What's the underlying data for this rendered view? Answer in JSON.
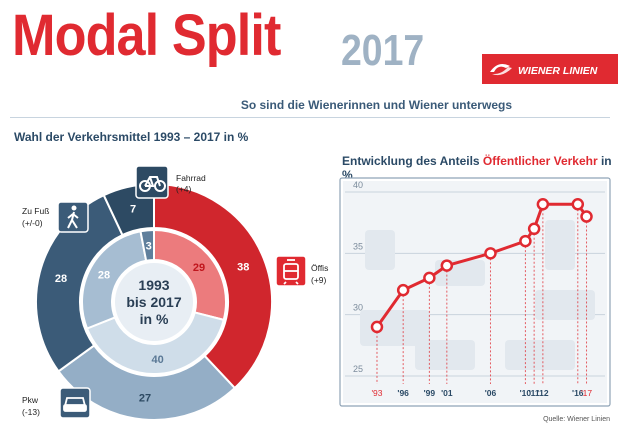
{
  "header": {
    "title": "Modal Split",
    "year": "2017",
    "subtitle": "So sind die Wienerinnen und Wiener unterwegs",
    "logo_text": "WIENER LINIEN"
  },
  "left_panel": {
    "heading": "Wahl der Verkehrsmittel 1993 – 2017 in %",
    "center_label": [
      "1993",
      "bis 2017",
      "in %"
    ],
    "modes": [
      {
        "name": "Fahrrad",
        "change": "(+4)",
        "v1993": "3",
        "v2017": "7",
        "icon": "bicycle-icon"
      },
      {
        "name": "Öffis",
        "change": "(+9)",
        "v1993": "29",
        "v2017": "38",
        "icon": "tram-icon"
      },
      {
        "name": "Pkw",
        "change": "(-13)",
        "v1993": "40",
        "v2017": "27",
        "icon": "car-icon"
      },
      {
        "name": "Zu Fuß",
        "change": "(+/-0)",
        "v1993": "28",
        "v2017": "28",
        "icon": "pedestrian-icon"
      }
    ]
  },
  "right_panel": {
    "heading_prefix": "Entwicklung des Anteils ",
    "heading_highlight": "Öffentlicher Verkehr",
    "heading_suffix": " in %"
  },
  "source": "Quelle: Wiener Linien",
  "colors": {
    "red": "#e02a31",
    "dark_blue": "#3b5b78",
    "mid_blue": "#8fa9c0",
    "light_blue": "#c4d3e0",
    "darkest": "#2d4a63"
  },
  "chart_data": [
    {
      "type": "pie",
      "title": "Wahl der Verkehrsmittel 1993 – 2017 in %",
      "categories": [
        "Öffis",
        "Pkw",
        "Zu Fuß",
        "Fahrrad"
      ],
      "series": [
        {
          "name": "1993",
          "values": [
            29,
            40,
            28,
            3
          ]
        },
        {
          "name": "2017",
          "values": [
            38,
            27,
            28,
            7
          ]
        }
      ]
    },
    {
      "type": "line",
      "title": "Entwicklung des Anteils Öffentlicher Verkehr in %",
      "x": [
        1993,
        1996,
        1999,
        2001,
        2006,
        2010,
        2011,
        2012,
        2016,
        2017
      ],
      "x_labels": [
        "'93",
        "'96",
        "'99",
        "'01",
        "'06",
        "'10",
        "'11",
        "'12",
        "'16",
        "'17"
      ],
      "values": [
        29,
        32,
        33,
        34,
        35,
        36,
        37,
        39,
        39,
        38
      ],
      "ylim": [
        25,
        40
      ],
      "yticks": [
        25,
        30,
        35,
        40
      ]
    }
  ]
}
